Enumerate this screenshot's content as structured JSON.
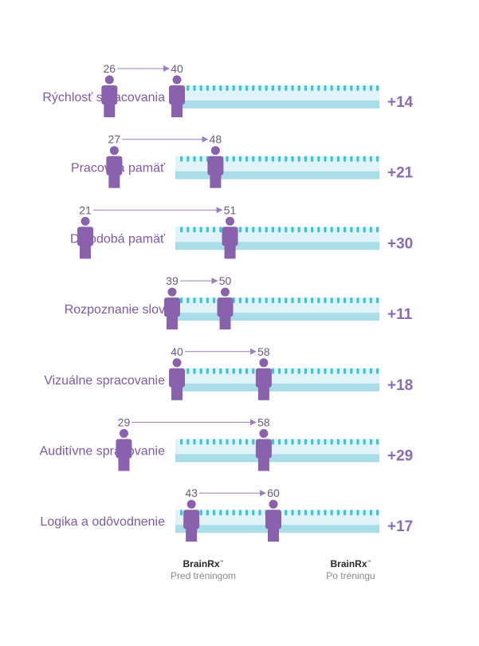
{
  "chart_data": {
    "type": "dot",
    "scale": [
      0,
      100
    ],
    "rows": [
      {
        "label": "Rýchlosť spracovania",
        "before": 26,
        "after": 40,
        "gain": "+14"
      },
      {
        "label": "Pracovná pamäť",
        "before": 27,
        "after": 48,
        "gain": "+21"
      },
      {
        "label": "Dlhodobá pamäť",
        "before": 21,
        "after": 51,
        "gain": "+30"
      },
      {
        "label": "Rozpoznanie slov",
        "before": 39,
        "after": 50,
        "gain": "+11"
      },
      {
        "label": "Vizuálne spracovanie",
        "before": 40,
        "after": 58,
        "gain": "+18"
      },
      {
        "label": "Auditívne spracovanie",
        "before": 29,
        "after": 58,
        "gain": "+29"
      },
      {
        "label": "Logika a odôvodnenie",
        "before": 43,
        "after": 60,
        "gain": "+17"
      }
    ],
    "colors": {
      "figure": "#8a61ad",
      "band_light": "#dff3f8",
      "band_dark": "#a9dde8",
      "ticks": "#3fc3d6",
      "arrow": "#9b7fbf",
      "label": "#7b5aa6",
      "gain": "#8a6bb3"
    }
  },
  "footer": {
    "before_brand": "BrainRx",
    "before_caption": "Pred tréningom",
    "after_brand": "BrainRx",
    "after_caption": "Po tréningu",
    "tm": "™"
  }
}
